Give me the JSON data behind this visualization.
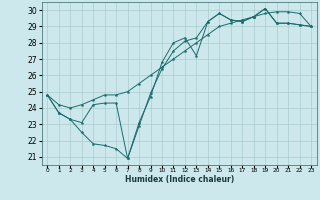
{
  "title": "",
  "xlabel": "Humidex (Indice chaleur)",
  "bg_color": "#cce8ec",
  "grid_color": "#aacccc",
  "line_color": "#1a6b6b",
  "xlim": [
    -0.5,
    23.5
  ],
  "ylim": [
    20.5,
    30.5
  ],
  "xticks": [
    0,
    1,
    2,
    3,
    4,
    5,
    6,
    7,
    8,
    9,
    10,
    11,
    12,
    13,
    14,
    15,
    16,
    17,
    18,
    19,
    20,
    21,
    22,
    23
  ],
  "yticks": [
    21,
    22,
    23,
    24,
    25,
    26,
    27,
    28,
    29,
    30
  ],
  "series": [
    [
      24.8,
      23.7,
      23.3,
      23.1,
      24.2,
      24.3,
      24.3,
      20.9,
      23.1,
      24.7,
      26.8,
      28.0,
      28.3,
      27.2,
      29.3,
      29.8,
      29.4,
      29.3,
      29.6,
      30.1,
      29.2,
      29.2,
      29.1,
      29.0
    ],
    [
      24.8,
      23.7,
      23.3,
      22.5,
      21.8,
      21.7,
      21.5,
      20.9,
      22.9,
      24.9,
      26.4,
      27.5,
      28.1,
      28.3,
      29.3,
      29.8,
      29.4,
      29.3,
      29.6,
      30.1,
      29.2,
      29.2,
      29.1,
      29.0
    ],
    [
      24.8,
      24.2,
      24.0,
      24.2,
      24.5,
      24.8,
      24.8,
      25.0,
      25.5,
      26.0,
      26.5,
      27.0,
      27.5,
      28.0,
      28.5,
      29.0,
      29.2,
      29.4,
      29.6,
      29.8,
      29.9,
      29.9,
      29.8,
      29.0
    ]
  ]
}
